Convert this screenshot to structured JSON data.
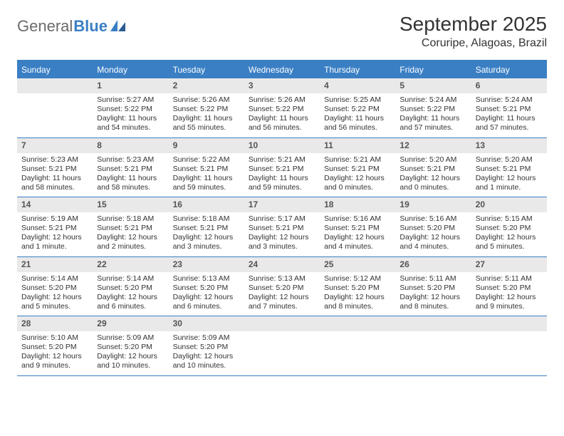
{
  "logo": {
    "word1": "General",
    "word2": "Blue"
  },
  "title": "September 2025",
  "location": "Coruripe, Alagoas, Brazil",
  "colors": {
    "header_bar": "#3a7fc4",
    "daynum_bg": "#e9e9e9",
    "text": "#333333",
    "logo_grey": "#6b6b6b",
    "logo_blue": "#3a7fc4",
    "background": "#ffffff"
  },
  "weekdays": [
    "Sunday",
    "Monday",
    "Tuesday",
    "Wednesday",
    "Thursday",
    "Friday",
    "Saturday"
  ],
  "weeks": [
    [
      null,
      {
        "n": "1",
        "sr": "Sunrise: 5:27 AM",
        "ss": "Sunset: 5:22 PM",
        "dl": "Daylight: 11 hours and 54 minutes."
      },
      {
        "n": "2",
        "sr": "Sunrise: 5:26 AM",
        "ss": "Sunset: 5:22 PM",
        "dl": "Daylight: 11 hours and 55 minutes."
      },
      {
        "n": "3",
        "sr": "Sunrise: 5:26 AM",
        "ss": "Sunset: 5:22 PM",
        "dl": "Daylight: 11 hours and 56 minutes."
      },
      {
        "n": "4",
        "sr": "Sunrise: 5:25 AM",
        "ss": "Sunset: 5:22 PM",
        "dl": "Daylight: 11 hours and 56 minutes."
      },
      {
        "n": "5",
        "sr": "Sunrise: 5:24 AM",
        "ss": "Sunset: 5:22 PM",
        "dl": "Daylight: 11 hours and 57 minutes."
      },
      {
        "n": "6",
        "sr": "Sunrise: 5:24 AM",
        "ss": "Sunset: 5:21 PM",
        "dl": "Daylight: 11 hours and 57 minutes."
      }
    ],
    [
      {
        "n": "7",
        "sr": "Sunrise: 5:23 AM",
        "ss": "Sunset: 5:21 PM",
        "dl": "Daylight: 11 hours and 58 minutes."
      },
      {
        "n": "8",
        "sr": "Sunrise: 5:23 AM",
        "ss": "Sunset: 5:21 PM",
        "dl": "Daylight: 11 hours and 58 minutes."
      },
      {
        "n": "9",
        "sr": "Sunrise: 5:22 AM",
        "ss": "Sunset: 5:21 PM",
        "dl": "Daylight: 11 hours and 59 minutes."
      },
      {
        "n": "10",
        "sr": "Sunrise: 5:21 AM",
        "ss": "Sunset: 5:21 PM",
        "dl": "Daylight: 11 hours and 59 minutes."
      },
      {
        "n": "11",
        "sr": "Sunrise: 5:21 AM",
        "ss": "Sunset: 5:21 PM",
        "dl": "Daylight: 12 hours and 0 minutes."
      },
      {
        "n": "12",
        "sr": "Sunrise: 5:20 AM",
        "ss": "Sunset: 5:21 PM",
        "dl": "Daylight: 12 hours and 0 minutes."
      },
      {
        "n": "13",
        "sr": "Sunrise: 5:20 AM",
        "ss": "Sunset: 5:21 PM",
        "dl": "Daylight: 12 hours and 1 minute."
      }
    ],
    [
      {
        "n": "14",
        "sr": "Sunrise: 5:19 AM",
        "ss": "Sunset: 5:21 PM",
        "dl": "Daylight: 12 hours and 1 minute."
      },
      {
        "n": "15",
        "sr": "Sunrise: 5:18 AM",
        "ss": "Sunset: 5:21 PM",
        "dl": "Daylight: 12 hours and 2 minutes."
      },
      {
        "n": "16",
        "sr": "Sunrise: 5:18 AM",
        "ss": "Sunset: 5:21 PM",
        "dl": "Daylight: 12 hours and 3 minutes."
      },
      {
        "n": "17",
        "sr": "Sunrise: 5:17 AM",
        "ss": "Sunset: 5:21 PM",
        "dl": "Daylight: 12 hours and 3 minutes."
      },
      {
        "n": "18",
        "sr": "Sunrise: 5:16 AM",
        "ss": "Sunset: 5:21 PM",
        "dl": "Daylight: 12 hours and 4 minutes."
      },
      {
        "n": "19",
        "sr": "Sunrise: 5:16 AM",
        "ss": "Sunset: 5:20 PM",
        "dl": "Daylight: 12 hours and 4 minutes."
      },
      {
        "n": "20",
        "sr": "Sunrise: 5:15 AM",
        "ss": "Sunset: 5:20 PM",
        "dl": "Daylight: 12 hours and 5 minutes."
      }
    ],
    [
      {
        "n": "21",
        "sr": "Sunrise: 5:14 AM",
        "ss": "Sunset: 5:20 PM",
        "dl": "Daylight: 12 hours and 5 minutes."
      },
      {
        "n": "22",
        "sr": "Sunrise: 5:14 AM",
        "ss": "Sunset: 5:20 PM",
        "dl": "Daylight: 12 hours and 6 minutes."
      },
      {
        "n": "23",
        "sr": "Sunrise: 5:13 AM",
        "ss": "Sunset: 5:20 PM",
        "dl": "Daylight: 12 hours and 6 minutes."
      },
      {
        "n": "24",
        "sr": "Sunrise: 5:13 AM",
        "ss": "Sunset: 5:20 PM",
        "dl": "Daylight: 12 hours and 7 minutes."
      },
      {
        "n": "25",
        "sr": "Sunrise: 5:12 AM",
        "ss": "Sunset: 5:20 PM",
        "dl": "Daylight: 12 hours and 8 minutes."
      },
      {
        "n": "26",
        "sr": "Sunrise: 5:11 AM",
        "ss": "Sunset: 5:20 PM",
        "dl": "Daylight: 12 hours and 8 minutes."
      },
      {
        "n": "27",
        "sr": "Sunrise: 5:11 AM",
        "ss": "Sunset: 5:20 PM",
        "dl": "Daylight: 12 hours and 9 minutes."
      }
    ],
    [
      {
        "n": "28",
        "sr": "Sunrise: 5:10 AM",
        "ss": "Sunset: 5:20 PM",
        "dl": "Daylight: 12 hours and 9 minutes."
      },
      {
        "n": "29",
        "sr": "Sunrise: 5:09 AM",
        "ss": "Sunset: 5:20 PM",
        "dl": "Daylight: 12 hours and 10 minutes."
      },
      {
        "n": "30",
        "sr": "Sunrise: 5:09 AM",
        "ss": "Sunset: 5:20 PM",
        "dl": "Daylight: 12 hours and 10 minutes."
      },
      null,
      null,
      null,
      null
    ]
  ]
}
